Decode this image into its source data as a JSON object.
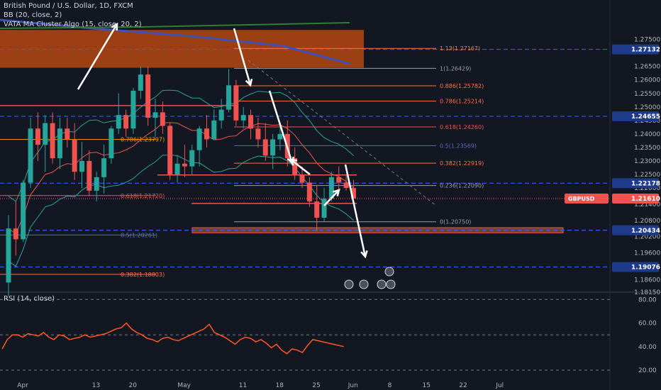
{
  "legend": {
    "symbol": "British Pound / U.S. Dollar, 1D, FXCM",
    "bb": "BB (20, close, 2)",
    "vata": "VATA MA Cluster Algo (15, close, 20, 2)",
    "rsi": "RSI (14, close)"
  },
  "colors": {
    "background": "#131722",
    "up": "#26a69a",
    "down": "#ef5350",
    "blue_level": "#2962ff",
    "fib": "#ff7043",
    "zone": "#a0522d",
    "rsi": "#ff5722",
    "arrow": "#ffffff"
  },
  "chart_data": [
    {
      "type": "candlestick",
      "title": "British Pound / U.S. Dollar, 1D, FXCM",
      "ylim": [
        1.1775,
        1.2785
      ],
      "price_ticks": [
        "1.27500",
        "1.26500",
        "1.26000",
        "1.25500",
        "1.25000",
        "1.24500",
        "1.24000",
        "1.23500",
        "1.23000",
        "1.22500",
        "1.22000",
        "1.21400",
        "1.20800",
        "1.20200",
        "1.19600",
        "1.18600",
        "1.18150"
      ],
      "price_tick_values": [
        1.275,
        1.265,
        1.26,
        1.255,
        1.25,
        1.245,
        1.24,
        1.235,
        1.23,
        1.225,
        1.22,
        1.214,
        1.208,
        1.202,
        1.196,
        1.186,
        1.1815
      ],
      "x_ticks": [
        "Apr",
        "13",
        "20",
        "May",
        "11",
        "18",
        "25",
        "Jun",
        "8",
        "15",
        "22",
        "Jul"
      ],
      "x_tick_index": [
        0,
        10,
        15,
        22,
        30,
        35,
        40,
        45,
        50,
        55,
        60,
        65
      ],
      "current_price": {
        "label": "GBPUSD",
        "value": "1.21610",
        "price": 1.2161
      },
      "blue_levels": [
        {
          "label": "1.27132",
          "price": 1.27132
        },
        {
          "label": "1.24655",
          "price": 1.24655
        },
        {
          "label": "1.22178",
          "price": 1.22178
        },
        {
          "label": "1.20434",
          "price": 1.20434
        },
        {
          "label": "1.19076",
          "price": 1.19076
        }
      ],
      "fib_levels": [
        {
          "label": "1.13(1.27167)",
          "price": 1.27167
        },
        {
          "label": "1(1.26429)",
          "price": 1.26429
        },
        {
          "label": "0.886(1.25782)",
          "price": 1.25782
        },
        {
          "label": "0.786(1.25214)",
          "price": 1.25214
        },
        {
          "label": "0.618(1.24260)",
          "price": 1.2426
        },
        {
          "label": "0.5(1.23569)",
          "price": 1.23569
        },
        {
          "label": "0.382(1.22919)",
          "price": 1.22919
        },
        {
          "label": "0.236(1.22090)",
          "price": 1.2209
        },
        {
          "label": "0(1.20750)",
          "price": 1.2075
        }
      ],
      "fib_levels_left": [
        {
          "label": "0.786(1.23797)",
          "price": 1.23797
        },
        {
          "label": "0.618(1.21720)",
          "price": 1.2172
        },
        {
          "label": "0.5(1.20261)",
          "price": 1.20261
        },
        {
          "label": "0.382(1.18803)",
          "price": 1.18803
        }
      ],
      "zones": [
        {
          "name": "upper-zone",
          "from": 1.2645,
          "to": 1.2785
        },
        {
          "name": "lower-zone",
          "from": 1.2034,
          "to": 1.2053
        }
      ],
      "candles": [
        [
          1.185,
          1.21,
          1.18,
          1.205
        ],
        [
          1.205,
          1.215,
          1.195,
          1.201
        ],
        [
          1.201,
          1.223,
          1.2,
          1.222
        ],
        [
          1.222,
          1.246,
          1.22,
          1.242
        ],
        [
          1.242,
          1.248,
          1.23,
          1.236
        ],
        [
          1.236,
          1.247,
          1.226,
          1.244
        ],
        [
          1.244,
          1.248,
          1.229,
          1.231
        ],
        [
          1.231,
          1.246,
          1.227,
          1.242
        ],
        [
          1.242,
          1.246,
          1.235,
          1.238
        ],
        [
          1.238,
          1.244,
          1.223,
          1.226
        ],
        [
          1.226,
          1.237,
          1.22,
          1.23
        ],
        [
          1.23,
          1.234,
          1.217,
          1.219
        ],
        [
          1.219,
          1.226,
          1.215,
          1.224
        ],
        [
          1.224,
          1.236,
          1.218,
          1.231
        ],
        [
          1.231,
          1.243,
          1.229,
          1.242
        ],
        [
          1.242,
          1.255,
          1.24,
          1.247
        ],
        [
          1.247,
          1.249,
          1.239,
          1.242
        ],
        [
          1.242,
          1.257,
          1.24,
          1.256
        ],
        [
          1.256,
          1.265,
          1.253,
          1.262
        ],
        [
          1.262,
          1.265,
          1.243,
          1.246
        ],
        [
          1.246,
          1.253,
          1.239,
          1.248
        ],
        [
          1.248,
          1.252,
          1.24,
          1.243
        ],
        [
          1.243,
          1.244,
          1.223,
          1.225
        ],
        [
          1.225,
          1.232,
          1.222,
          1.229
        ],
        [
          1.229,
          1.236,
          1.224,
          1.228
        ],
        [
          1.228,
          1.236,
          1.225,
          1.234
        ],
        [
          1.234,
          1.243,
          1.228,
          1.242
        ],
        [
          1.242,
          1.247,
          1.235,
          1.238
        ],
        [
          1.238,
          1.249,
          1.238,
          1.245
        ],
        [
          1.245,
          1.253,
          1.242,
          1.249
        ],
        [
          1.249,
          1.264,
          1.248,
          1.258
        ],
        [
          1.258,
          1.26,
          1.243,
          1.245
        ],
        [
          1.245,
          1.25,
          1.242,
          1.247
        ],
        [
          1.247,
          1.249,
          1.238,
          1.242
        ],
        [
          1.242,
          1.246,
          1.235,
          1.238
        ],
        [
          1.238,
          1.244,
          1.23,
          1.232
        ],
        [
          1.232,
          1.24,
          1.227,
          1.238
        ],
        [
          1.238,
          1.244,
          1.234,
          1.24
        ],
        [
          1.24,
          1.245,
          1.228,
          1.231
        ],
        [
          1.231,
          1.235,
          1.223,
          1.225
        ],
        [
          1.225,
          1.228,
          1.22,
          1.222
        ],
        [
          1.222,
          1.224,
          1.213,
          1.215
        ],
        [
          1.215,
          1.221,
          1.204,
          1.209
        ],
        [
          1.209,
          1.22,
          1.2075,
          1.216
        ],
        [
          1.216,
          1.226,
          1.215,
          1.224
        ],
        [
          1.224,
          1.228,
          1.218,
          1.222
        ],
        [
          1.222,
          1.225,
          1.219,
          1.22
        ],
        [
          1.22,
          1.223,
          1.214,
          1.2161
        ]
      ],
      "rsi": {
        "ticks": [
          "80.00",
          "60.00",
          "40.00",
          "20.00"
        ],
        "tick_values": [
          80,
          60,
          40,
          20
        ],
        "levels": [
          80,
          50,
          20
        ],
        "values": [
          38,
          46,
          50,
          50,
          48,
          51,
          50,
          49,
          52,
          48,
          46,
          50,
          49,
          46,
          47,
          48,
          50,
          48,
          49,
          50,
          51,
          53,
          55,
          56,
          60,
          55,
          52,
          50,
          47,
          46,
          44,
          47,
          48,
          46,
          45,
          47,
          49,
          51,
          53,
          55,
          59,
          52,
          50,
          48,
          45,
          42,
          46,
          48,
          47,
          44,
          46,
          43,
          39,
          42,
          37,
          34,
          38,
          37,
          35,
          41,
          46,
          45,
          44,
          43,
          42,
          41,
          40
        ]
      }
    }
  ]
}
